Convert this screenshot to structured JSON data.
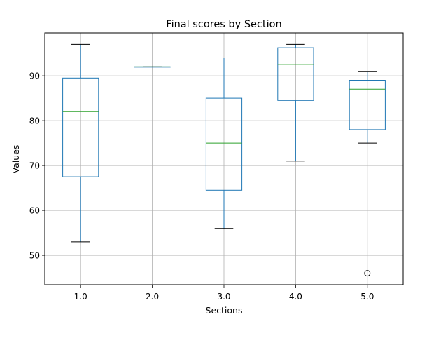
{
  "chart_data": {
    "type": "box",
    "title": "Final scores by Section",
    "xlabel": "Sections",
    "ylabel": "Values",
    "categories": [
      "1.0",
      "2.0",
      "3.0",
      "4.0",
      "5.0"
    ],
    "boxes": [
      {
        "category": "1.0",
        "whisker_low": 53,
        "q1": 67.5,
        "median": 82,
        "q3": 89.5,
        "whisker_high": 97,
        "outliers": []
      },
      {
        "category": "2.0",
        "whisker_low": 92,
        "q1": 92,
        "median": 92,
        "q3": 92,
        "whisker_high": 92,
        "outliers": []
      },
      {
        "category": "3.0",
        "whisker_low": 56,
        "q1": 64.5,
        "median": 75,
        "q3": 85,
        "whisker_high": 94,
        "outliers": []
      },
      {
        "category": "4.0",
        "whisker_low": 71,
        "q1": 84.5,
        "median": 92.5,
        "q3": 96.25,
        "whisker_high": 97,
        "outliers": []
      },
      {
        "category": "5.0",
        "whisker_low": 75,
        "q1": 78,
        "median": 87,
        "q3": 89,
        "whisker_high": 91,
        "outliers": [
          46
        ]
      }
    ],
    "yticks": [
      50,
      60,
      70,
      80,
      90
    ],
    "ylim": [
      43.45,
      99.55
    ],
    "grid": true,
    "colors": {
      "box": "#1f77b4",
      "median": "#2ca02c",
      "whisker_cap": "#000000",
      "grid": "#b0b0b0",
      "outlier": "#000000"
    }
  }
}
